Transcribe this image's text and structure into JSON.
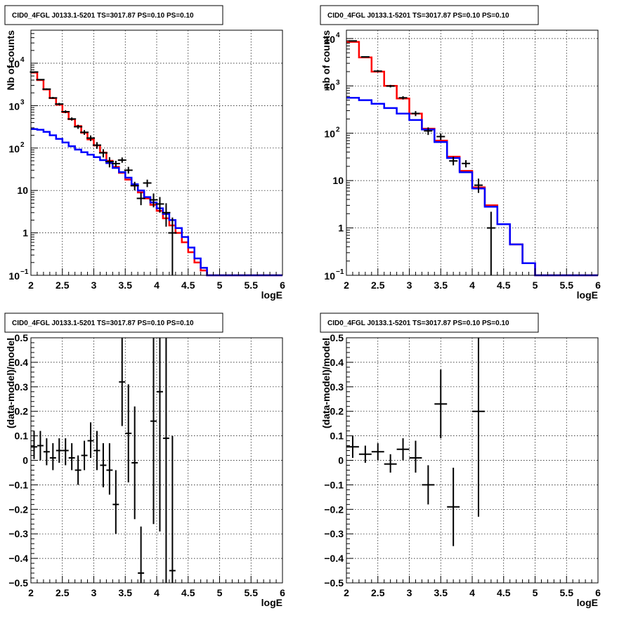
{
  "chart_data": [
    {
      "type": "line",
      "scale": "log",
      "title": "CID0_4FGL J0133.1-5201 TS=3017.87 PS=0.10 PS=0.10",
      "xlabel": "logE",
      "ylabel": "Nb of counts",
      "xlim": [
        2,
        6
      ],
      "ylim": [
        0.1,
        60000
      ],
      "grid": true,
      "x_ticks": [
        "2",
        "2.5",
        "3",
        "3.5",
        "4",
        "4.5",
        "5",
        "5.5",
        "6"
      ],
      "y_ticks": [
        {
          "v": 0.1,
          "base": "10",
          "exp": "−1"
        },
        {
          "v": 1,
          "label": "1"
        },
        {
          "v": 10,
          "label": "10"
        },
        {
          "v": 100,
          "base": "10",
          "exp": "2"
        },
        {
          "v": 1000,
          "base": "10",
          "exp": "3"
        },
        {
          "v": 10000,
          "base": "10",
          "exp": "4"
        }
      ],
      "bin_edges": [
        2.0,
        2.1,
        2.2,
        2.3,
        2.4,
        2.5,
        2.6,
        2.7,
        2.8,
        2.9,
        3.0,
        3.1,
        3.2,
        3.3,
        3.4,
        3.5,
        3.6,
        3.7,
        3.8,
        3.9,
        4.0,
        4.1,
        4.2,
        4.3,
        4.4,
        4.5,
        4.6,
        4.7,
        4.8,
        4.9,
        5.0,
        5.1,
        5.2,
        5.3,
        5.4,
        5.5,
        5.6,
        5.7,
        5.8,
        5.9,
        6.0
      ],
      "series": [
        {
          "color": "#ff0000",
          "values": [
            6000,
            4000,
            2400,
            1500,
            1050,
            700,
            480,
            330,
            230,
            160,
            115,
            78,
            50,
            36,
            26,
            18,
            13,
            9,
            6.5,
            4.6,
            3.3,
            2.2,
            1.5,
            1.0,
            0.6,
            0.35,
            0.2,
            0.13,
            0.1,
            0.1,
            0.1,
            0.1,
            0.1,
            0.1,
            0.1,
            0.1,
            0.1,
            0.1,
            0.1,
            0.1
          ]
        },
        {
          "color": "#0000ff",
          "values": [
            280,
            270,
            240,
            200,
            165,
            135,
            110,
            92,
            80,
            70,
            61,
            52,
            44,
            34,
            27,
            20,
            14,
            10,
            7,
            5.2,
            3.8,
            2.8,
            2.0,
            1.3,
            0.8,
            0.45,
            0.25,
            0.15,
            0.1,
            0.1,
            0.1,
            0.1,
            0.1,
            0.1,
            0.1,
            0.1,
            0.1,
            0.1,
            0.1,
            0.1
          ]
        }
      ],
      "points": [
        {
          "x": 2.05,
          "y": 6200,
          "lo": 6050,
          "hi": 6350
        },
        {
          "x": 2.15,
          "y": 4100,
          "lo": 3980,
          "hi": 4230
        },
        {
          "x": 2.25,
          "y": 2450,
          "lo": 2350,
          "hi": 2550
        },
        {
          "x": 2.35,
          "y": 1520,
          "lo": 1440,
          "hi": 1600
        },
        {
          "x": 2.45,
          "y": 1090,
          "lo": 1020,
          "hi": 1160
        },
        {
          "x": 2.55,
          "y": 720,
          "lo": 665,
          "hi": 775
        },
        {
          "x": 2.65,
          "y": 485,
          "lo": 443,
          "hi": 527
        },
        {
          "x": 2.75,
          "y": 318,
          "lo": 283,
          "hi": 353
        },
        {
          "x": 2.85,
          "y": 235,
          "lo": 205,
          "hi": 265
        },
        {
          "x": 2.95,
          "y": 172,
          "lo": 146,
          "hi": 198
        },
        {
          "x": 3.05,
          "y": 117,
          "lo": 96,
          "hi": 138
        },
        {
          "x": 3.15,
          "y": 77,
          "lo": 60,
          "hi": 94
        },
        {
          "x": 3.25,
          "y": 48,
          "lo": 35,
          "hi": 61
        },
        {
          "x": 3.35,
          "y": 43,
          "lo": 36,
          "hi": 50
        },
        {
          "x": 3.45,
          "y": 52,
          "lo": 45,
          "hi": 60
        },
        {
          "x": 3.55,
          "y": 30,
          "lo": 25,
          "hi": 36
        },
        {
          "x": 3.65,
          "y": 13,
          "lo": 10,
          "hi": 16
        },
        {
          "x": 3.75,
          "y": 6.5,
          "lo": 4.5,
          "hi": 9
        },
        {
          "x": 3.85,
          "y": 15,
          "lo": 12,
          "hi": 18
        },
        {
          "x": 3.95,
          "y": 6,
          "lo": 4,
          "hi": 8.5
        },
        {
          "x": 4.05,
          "y": 4.8,
          "lo": 3,
          "hi": 7
        },
        {
          "x": 4.15,
          "y": 3,
          "lo": 1.4,
          "hi": 5
        },
        {
          "x": 4.25,
          "y": 1,
          "lo": 0.1,
          "hi": 2.3
        }
      ]
    },
    {
      "type": "line",
      "scale": "log",
      "title": "CID0_4FGL J0133.1-5201 TS=3017.87 PS=0.10 PS=0.10",
      "xlabel": "logE",
      "ylabel": "nb of counts",
      "xlim": [
        2,
        6
      ],
      "ylim": [
        0.1,
        15000
      ],
      "grid": true,
      "x_ticks": [
        "2",
        "2.5",
        "3",
        "3.5",
        "4",
        "4.5",
        "5",
        "5.5",
        "6"
      ],
      "y_ticks": [
        {
          "v": 0.1,
          "base": "10",
          "exp": "−1"
        },
        {
          "v": 1,
          "label": "1"
        },
        {
          "v": 10,
          "label": "10"
        },
        {
          "v": 100,
          "base": "10",
          "exp": "2"
        },
        {
          "v": 1000,
          "base": "10",
          "exp": "3"
        },
        {
          "v": 10000,
          "base": "10",
          "exp": "4"
        }
      ],
      "bin_edges": [
        2.0,
        2.2,
        2.4,
        2.6,
        2.8,
        3.0,
        3.2,
        3.4,
        3.6,
        3.8,
        4.0,
        4.2,
        4.4,
        4.6,
        4.8,
        5.0,
        5.2,
        5.4,
        5.6,
        5.8,
        6.0
      ],
      "series": [
        {
          "color": "#ff0000",
          "values": [
            8500,
            4000,
            2000,
            1000,
            540,
            260,
            125,
            70,
            32,
            16,
            7.2,
            3,
            1.2,
            0.45,
            0.18,
            0.1,
            0.1,
            0.1,
            0.1,
            0.1
          ]
        },
        {
          "color": "#0000ff",
          "values": [
            560,
            500,
            420,
            340,
            260,
            190,
            120,
            65,
            30,
            15,
            6.8,
            2.8,
            1.2,
            0.45,
            0.18,
            0.1,
            0.1,
            0.1,
            0.1,
            0.1
          ]
        }
      ],
      "points": [
        {
          "x": 2.1,
          "y": 8900,
          "lo": 8700,
          "hi": 9100
        },
        {
          "x": 2.3,
          "y": 4100,
          "lo": 3980,
          "hi": 4230
        },
        {
          "x": 2.5,
          "y": 2050,
          "lo": 1960,
          "hi": 2140
        },
        {
          "x": 2.7,
          "y": 990,
          "lo": 930,
          "hi": 1050
        },
        {
          "x": 2.9,
          "y": 560,
          "lo": 515,
          "hi": 605
        },
        {
          "x": 3.1,
          "y": 262,
          "lo": 230,
          "hi": 294
        },
        {
          "x": 3.3,
          "y": 112,
          "lo": 92,
          "hi": 133
        },
        {
          "x": 3.5,
          "y": 85,
          "lo": 72,
          "hi": 99
        },
        {
          "x": 3.7,
          "y": 26,
          "lo": 21,
          "hi": 32
        },
        {
          "x": 3.9,
          "y": 23,
          "lo": 19,
          "hi": 27
        },
        {
          "x": 4.1,
          "y": 8,
          "lo": 5.5,
          "hi": 11
        },
        {
          "x": 4.3,
          "y": 1,
          "lo": 0.1,
          "hi": 2.2
        }
      ]
    },
    {
      "type": "scatter",
      "scale": "linear",
      "title": "CID0_4FGL J0133.1-5201 TS=3017.87 PS=0.10 PS=0.10",
      "xlabel": "logE",
      "ylabel": "(data-model)/model",
      "xlim": [
        2,
        6
      ],
      "ylim": [
        -0.5,
        0.5
      ],
      "grid": true,
      "x_ticks": [
        "2",
        "2.5",
        "3",
        "3.5",
        "4",
        "4.5",
        "5",
        "5.5",
        "6"
      ],
      "y_ticks": [
        {
          "v": -0.5,
          "label": "−0.5"
        },
        {
          "v": -0.4,
          "label": "−0.4"
        },
        {
          "v": -0.3,
          "label": "−0.3"
        },
        {
          "v": -0.2,
          "label": "−0.2"
        },
        {
          "v": -0.1,
          "label": "−0.1"
        },
        {
          "v": 0,
          "label": "0"
        },
        {
          "v": 0.1,
          "label": "0.1"
        },
        {
          "v": 0.2,
          "label": "0.2"
        },
        {
          "v": 0.3,
          "label": "0.3"
        },
        {
          "v": 0.4,
          "label": "0.4"
        },
        {
          "v": 0.5,
          "label": "0.5"
        }
      ],
      "points": [
        {
          "x": 2.05,
          "y": 0.055,
          "lo": 0.005,
          "hi": 0.12,
          "xw": 0.05
        },
        {
          "x": 2.15,
          "y": 0.06,
          "lo": 0.0,
          "hi": 0.12,
          "xw": 0.05
        },
        {
          "x": 2.25,
          "y": 0.035,
          "lo": -0.02,
          "hi": 0.09,
          "xw": 0.05
        },
        {
          "x": 2.35,
          "y": 0.01,
          "lo": -0.04,
          "hi": 0.07,
          "xw": 0.05
        },
        {
          "x": 2.45,
          "y": 0.04,
          "lo": -0.01,
          "hi": 0.09,
          "xw": 0.05
        },
        {
          "x": 2.55,
          "y": 0.04,
          "lo": -0.02,
          "hi": 0.09,
          "xw": 0.05
        },
        {
          "x": 2.65,
          "y": 0.01,
          "lo": -0.04,
          "hi": 0.07,
          "xw": 0.05
        },
        {
          "x": 2.75,
          "y": -0.04,
          "lo": -0.1,
          "hi": 0.02,
          "xw": 0.05
        },
        {
          "x": 2.85,
          "y": 0.02,
          "lo": -0.04,
          "hi": 0.08,
          "xw": 0.05
        },
        {
          "x": 2.95,
          "y": 0.08,
          "lo": 0.01,
          "hi": 0.155,
          "xw": 0.05
        },
        {
          "x": 3.05,
          "y": 0.04,
          "lo": -0.04,
          "hi": 0.12,
          "xw": 0.05
        },
        {
          "x": 3.15,
          "y": -0.02,
          "lo": -0.11,
          "hi": 0.07,
          "xw": 0.05
        },
        {
          "x": 3.25,
          "y": -0.04,
          "lo": -0.14,
          "hi": 0.07,
          "xw": 0.05
        },
        {
          "x": 3.35,
          "y": -0.18,
          "lo": -0.3,
          "hi": -0.04,
          "xw": 0.05
        },
        {
          "x": 3.45,
          "y": 0.32,
          "lo": 0.14,
          "hi": 0.5,
          "xw": 0.05
        },
        {
          "x": 3.55,
          "y": 0.11,
          "lo": -0.09,
          "hi": 0.31,
          "xw": 0.05
        },
        {
          "x": 3.65,
          "y": -0.01,
          "lo": -0.24,
          "hi": 0.22,
          "xw": 0.05
        },
        {
          "x": 3.75,
          "y": -0.46,
          "lo": -0.5,
          "hi": -0.27,
          "xw": 0.05
        },
        {
          "x": 3.95,
          "y": 0.16,
          "lo": -0.26,
          "hi": 0.5,
          "xw": 0.05
        },
        {
          "x": 4.05,
          "y": 0.28,
          "lo": -0.29,
          "hi": 0.5,
          "xw": 0.05
        },
        {
          "x": 4.15,
          "y": 0.09,
          "lo": -0.5,
          "hi": 0.5,
          "xw": 0.05
        },
        {
          "x": 4.25,
          "y": -0.45,
          "lo": -0.5,
          "hi": 0.1,
          "xw": 0.05
        }
      ]
    },
    {
      "type": "scatter",
      "scale": "linear",
      "title": "CID0_4FGL J0133.1-5201 TS=3017.87 PS=0.10 PS=0.10",
      "xlabel": "logE",
      "ylabel": "(data-model)/model",
      "xlim": [
        2,
        6
      ],
      "ylim": [
        -0.5,
        0.5
      ],
      "grid": true,
      "x_ticks": [
        "2",
        "2.5",
        "3",
        "3.5",
        "4",
        "4.5",
        "5",
        "5.5",
        "6"
      ],
      "y_ticks": [
        {
          "v": -0.5,
          "label": "−0.5"
        },
        {
          "v": -0.4,
          "label": "−0.4"
        },
        {
          "v": -0.3,
          "label": "−0.3"
        },
        {
          "v": -0.2,
          "label": "−0.2"
        },
        {
          "v": -0.1,
          "label": "−0.1"
        },
        {
          "v": 0,
          "label": "0"
        },
        {
          "v": 0.1,
          "label": "0.1"
        },
        {
          "v": 0.2,
          "label": "0.2"
        },
        {
          "v": 0.3,
          "label": "0.3"
        },
        {
          "v": 0.4,
          "label": "0.4"
        },
        {
          "v": 0.5,
          "label": "0.5"
        }
      ],
      "points": [
        {
          "x": 2.1,
          "y": 0.055,
          "lo": 0.01,
          "hi": 0.1,
          "xw": 0.1
        },
        {
          "x": 2.3,
          "y": 0.025,
          "lo": -0.01,
          "hi": 0.06,
          "xw": 0.1
        },
        {
          "x": 2.5,
          "y": 0.035,
          "lo": 0.0,
          "hi": 0.07,
          "xw": 0.1
        },
        {
          "x": 2.7,
          "y": -0.015,
          "lo": -0.05,
          "hi": 0.025,
          "xw": 0.1
        },
        {
          "x": 2.9,
          "y": 0.045,
          "lo": 0.0,
          "hi": 0.09,
          "xw": 0.1
        },
        {
          "x": 3.1,
          "y": 0.01,
          "lo": -0.05,
          "hi": 0.08,
          "xw": 0.1
        },
        {
          "x": 3.3,
          "y": -0.1,
          "lo": -0.18,
          "hi": -0.02,
          "xw": 0.1
        },
        {
          "x": 3.5,
          "y": 0.23,
          "lo": 0.09,
          "hi": 0.37,
          "xw": 0.1
        },
        {
          "x": 3.7,
          "y": -0.19,
          "lo": -0.35,
          "hi": -0.03,
          "xw": 0.1
        },
        {
          "x": 4.1,
          "y": 0.2,
          "lo": -0.23,
          "hi": 0.5,
          "xw": 0.1
        }
      ]
    }
  ]
}
